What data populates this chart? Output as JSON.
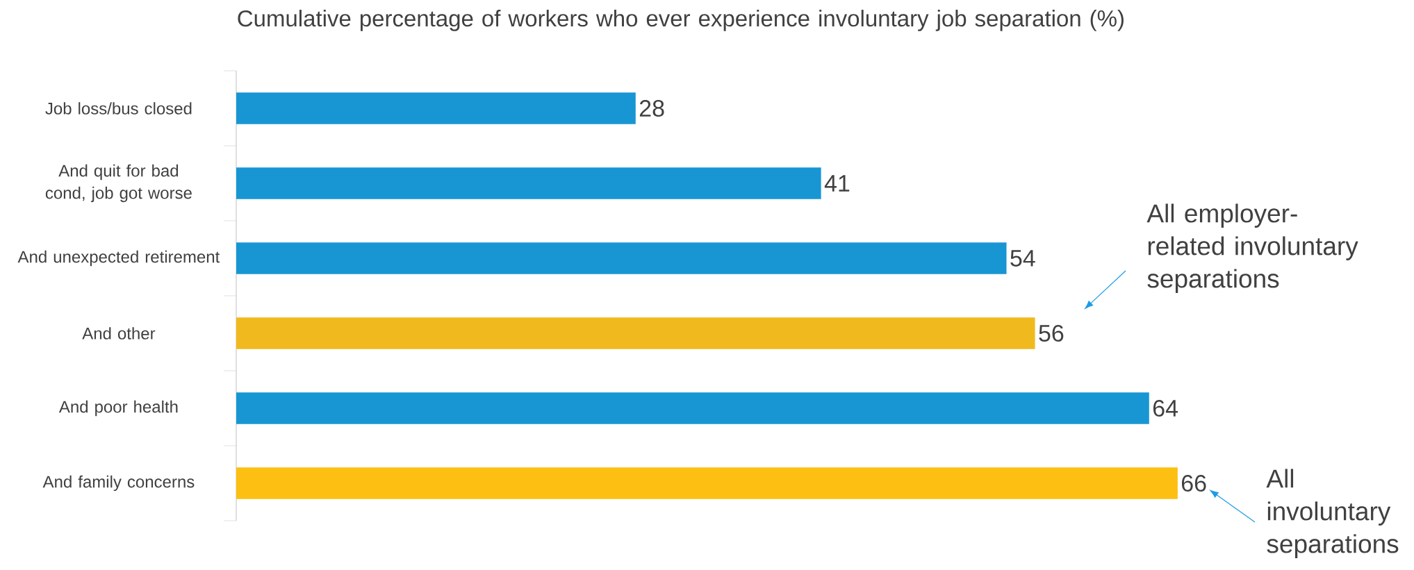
{
  "chart_data": {
    "type": "bar",
    "orientation": "horizontal",
    "title": "Cumulative percentage of workers  who ever experience involuntary job separation (%)",
    "categories": [
      "Job loss/bus closed",
      "And quit for bad cond, job got worse",
      "And unexpected retirement",
      "And other",
      "And poor health",
      "And family concerns"
    ],
    "values": [
      28,
      41,
      54,
      56,
      64,
      66
    ],
    "colors": [
      "#1896d3",
      "#1896d3",
      "#1896d3",
      "#f0b91e",
      "#1896d3",
      "#fcbf12"
    ],
    "data_labels": true,
    "annotations": [
      "All employer-related involuntary separations",
      "All involuntary separations"
    ]
  }
}
